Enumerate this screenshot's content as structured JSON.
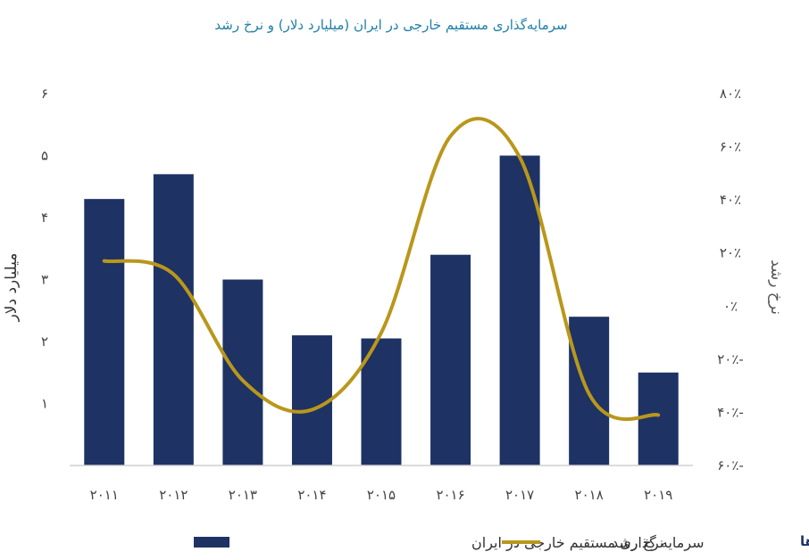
{
  "chart_data": {
    "type": "bar",
    "title": "سرمایه‌گذاری مستقیم خارجی در ایران (میلیارد دلار) و نرخ رشد",
    "categories": [
      "۲۰۱۱",
      "۲۰۱۲",
      "۲۰۱۳",
      "۲۰۱۴",
      "۲۰۱۵",
      "۲۰۱۶",
      "۲۰۱۷",
      "۲۰۱۸",
      "۲۰۱۹"
    ],
    "ylabel": "میلیارد دلار",
    "y2label": "نرخ رشد",
    "ylim": [
      0,
      6
    ],
    "y2lim": [
      -60,
      80
    ],
    "yticks": [
      1,
      2,
      3,
      4,
      5,
      6
    ],
    "yticklabels": [
      "۱",
      "۲",
      "۳",
      "۴",
      "۵",
      "۶"
    ],
    "y2ticks": [
      -60,
      -40,
      -20,
      0,
      20,
      40,
      60,
      80
    ],
    "y2ticklabels": [
      "۶۰٪-",
      "۴۰٪-",
      "۲۰٪-",
      "۰٪",
      "۲۰٪",
      "۴۰٪",
      "۶۰٪",
      "۸۰٪"
    ],
    "series": [
      {
        "name": "سرمایه گذاری مستقیم خارجی در ایران",
        "type": "bar",
        "axis": "left",
        "color": "#1e3264",
        "values": [
          4.3,
          4.7,
          3.0,
          2.1,
          2.05,
          3.4,
          5.0,
          2.4,
          1.5
        ]
      },
      {
        "name": "نرخ رشد",
        "type": "line",
        "axis": "right",
        "color": "#b9971b",
        "values": [
          17,
          12,
          -28,
          -39,
          -10,
          64,
          56,
          -33,
          -41
        ]
      }
    ],
    "grid": false,
    "legend": "bottom"
  },
  "logo": {
    "text": "برترها"
  }
}
